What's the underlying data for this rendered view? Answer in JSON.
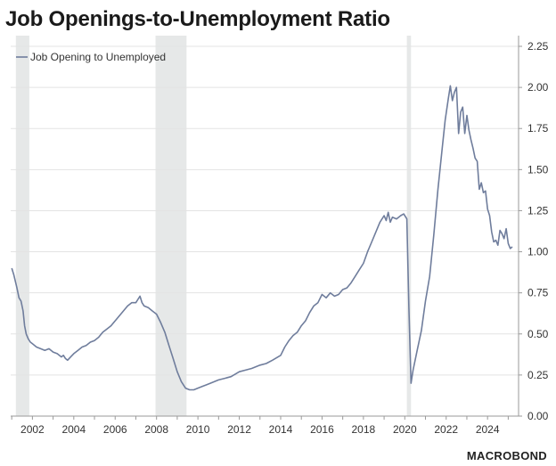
{
  "title": "Job Openings-to-Unemployment Ratio",
  "logo": "MACROBOND",
  "colors": {
    "series": "#6f7d9c",
    "recession": "#e6e8e8",
    "grid": "#e3e3e3",
    "axis": "#9a9a9a"
  },
  "chart_data": {
    "type": "line",
    "title": "Job Openings-to-Unemployment Ratio",
    "xlabel": "",
    "ylabel": "",
    "x_ticks": [
      "2002",
      "2004",
      "2006",
      "2008",
      "2010",
      "2012",
      "2014",
      "2016",
      "2018",
      "2020",
      "2022",
      "2024"
    ],
    "y_ticks": [
      "0.00",
      "0.25",
      "0.50",
      "0.75",
      "1.00",
      "1.25",
      "1.50",
      "1.75",
      "2.00",
      "2.25"
    ],
    "xlim": [
      2000.95,
      2025.5
    ],
    "ylim": [
      0,
      2.25
    ],
    "y_axis_side": "right",
    "grid": "horizontal",
    "legend": {
      "position": "top-left",
      "entries": [
        "Job Opening to Unemployed"
      ]
    },
    "recessions": [
      {
        "start": 2001.2,
        "end": 2001.85
      },
      {
        "start": 2007.95,
        "end": 2009.45
      },
      {
        "start": 2020.1,
        "end": 2020.3
      }
    ],
    "series": [
      {
        "name": "Job Opening to Unemployed",
        "points": [
          [
            2001.0,
            0.9
          ],
          [
            2001.1,
            0.86
          ],
          [
            2001.25,
            0.78
          ],
          [
            2001.35,
            0.72
          ],
          [
            2001.45,
            0.7
          ],
          [
            2001.55,
            0.64
          ],
          [
            2001.62,
            0.55
          ],
          [
            2001.7,
            0.5
          ],
          [
            2001.8,
            0.47
          ],
          [
            2001.9,
            0.45
          ],
          [
            2002.0,
            0.44
          ],
          [
            2002.2,
            0.42
          ],
          [
            2002.4,
            0.41
          ],
          [
            2002.6,
            0.4
          ],
          [
            2002.8,
            0.41
          ],
          [
            2003.0,
            0.39
          ],
          [
            2003.2,
            0.38
          ],
          [
            2003.4,
            0.36
          ],
          [
            2003.5,
            0.37
          ],
          [
            2003.6,
            0.35
          ],
          [
            2003.7,
            0.34
          ],
          [
            2003.85,
            0.36
          ],
          [
            2004.0,
            0.38
          ],
          [
            2004.2,
            0.4
          ],
          [
            2004.4,
            0.42
          ],
          [
            2004.6,
            0.43
          ],
          [
            2004.8,
            0.45
          ],
          [
            2005.0,
            0.46
          ],
          [
            2005.2,
            0.48
          ],
          [
            2005.4,
            0.51
          ],
          [
            2005.6,
            0.53
          ],
          [
            2005.8,
            0.55
          ],
          [
            2006.0,
            0.58
          ],
          [
            2006.2,
            0.61
          ],
          [
            2006.4,
            0.64
          ],
          [
            2006.6,
            0.67
          ],
          [
            2006.8,
            0.69
          ],
          [
            2007.0,
            0.69
          ],
          [
            2007.1,
            0.71
          ],
          [
            2007.2,
            0.73
          ],
          [
            2007.3,
            0.69
          ],
          [
            2007.4,
            0.67
          ],
          [
            2007.6,
            0.66
          ],
          [
            2007.8,
            0.64
          ],
          [
            2008.0,
            0.62
          ],
          [
            2008.2,
            0.57
          ],
          [
            2008.4,
            0.51
          ],
          [
            2008.6,
            0.43
          ],
          [
            2008.8,
            0.35
          ],
          [
            2009.0,
            0.27
          ],
          [
            2009.2,
            0.21
          ],
          [
            2009.4,
            0.17
          ],
          [
            2009.6,
            0.16
          ],
          [
            2009.8,
            0.16
          ],
          [
            2010.0,
            0.17
          ],
          [
            2010.2,
            0.18
          ],
          [
            2010.4,
            0.19
          ],
          [
            2010.6,
            0.2
          ],
          [
            2010.8,
            0.21
          ],
          [
            2011.0,
            0.22
          ],
          [
            2011.3,
            0.23
          ],
          [
            2011.6,
            0.24
          ],
          [
            2012.0,
            0.27
          ],
          [
            2012.3,
            0.28
          ],
          [
            2012.6,
            0.29
          ],
          [
            2013.0,
            0.31
          ],
          [
            2013.3,
            0.32
          ],
          [
            2013.6,
            0.34
          ],
          [
            2014.0,
            0.37
          ],
          [
            2014.2,
            0.42
          ],
          [
            2014.4,
            0.46
          ],
          [
            2014.6,
            0.49
          ],
          [
            2014.8,
            0.51
          ],
          [
            2015.0,
            0.55
          ],
          [
            2015.2,
            0.58
          ],
          [
            2015.4,
            0.63
          ],
          [
            2015.6,
            0.67
          ],
          [
            2015.8,
            0.69
          ],
          [
            2016.0,
            0.74
          ],
          [
            2016.2,
            0.72
          ],
          [
            2016.4,
            0.75
          ],
          [
            2016.6,
            0.73
          ],
          [
            2016.8,
            0.74
          ],
          [
            2017.0,
            0.77
          ],
          [
            2017.2,
            0.78
          ],
          [
            2017.4,
            0.81
          ],
          [
            2017.6,
            0.85
          ],
          [
            2017.8,
            0.89
          ],
          [
            2018.0,
            0.93
          ],
          [
            2018.2,
            1.0
          ],
          [
            2018.4,
            1.06
          ],
          [
            2018.6,
            1.12
          ],
          [
            2018.8,
            1.18
          ],
          [
            2019.0,
            1.22
          ],
          [
            2019.1,
            1.19
          ],
          [
            2019.2,
            1.24
          ],
          [
            2019.3,
            1.18
          ],
          [
            2019.4,
            1.21
          ],
          [
            2019.6,
            1.2
          ],
          [
            2019.8,
            1.22
          ],
          [
            2019.95,
            1.23
          ],
          [
            2020.1,
            1.2
          ],
          [
            2020.2,
            0.66
          ],
          [
            2020.3,
            0.2
          ],
          [
            2020.4,
            0.28
          ],
          [
            2020.6,
            0.4
          ],
          [
            2020.8,
            0.52
          ],
          [
            2021.0,
            0.7
          ],
          [
            2021.2,
            0.85
          ],
          [
            2021.4,
            1.1
          ],
          [
            2021.6,
            1.38
          ],
          [
            2021.8,
            1.62
          ],
          [
            2021.95,
            1.8
          ],
          [
            2022.1,
            1.93
          ],
          [
            2022.2,
            2.01
          ],
          [
            2022.3,
            1.92
          ],
          [
            2022.4,
            1.97
          ],
          [
            2022.5,
            2.0
          ],
          [
            2022.6,
            1.72
          ],
          [
            2022.7,
            1.85
          ],
          [
            2022.8,
            1.88
          ],
          [
            2022.9,
            1.72
          ],
          [
            2023.0,
            1.83
          ],
          [
            2023.1,
            1.74
          ],
          [
            2023.2,
            1.68
          ],
          [
            2023.3,
            1.63
          ],
          [
            2023.4,
            1.57
          ],
          [
            2023.5,
            1.55
          ],
          [
            2023.6,
            1.38
          ],
          [
            2023.7,
            1.42
          ],
          [
            2023.8,
            1.36
          ],
          [
            2023.9,
            1.37
          ],
          [
            2024.0,
            1.26
          ],
          [
            2024.1,
            1.22
          ],
          [
            2024.2,
            1.12
          ],
          [
            2024.3,
            1.06
          ],
          [
            2024.4,
            1.07
          ],
          [
            2024.5,
            1.04
          ],
          [
            2024.6,
            1.13
          ],
          [
            2024.7,
            1.11
          ],
          [
            2024.8,
            1.08
          ],
          [
            2024.9,
            1.14
          ],
          [
            2025.0,
            1.05
          ],
          [
            2025.1,
            1.02
          ],
          [
            2025.2,
            1.03
          ]
        ]
      }
    ]
  }
}
